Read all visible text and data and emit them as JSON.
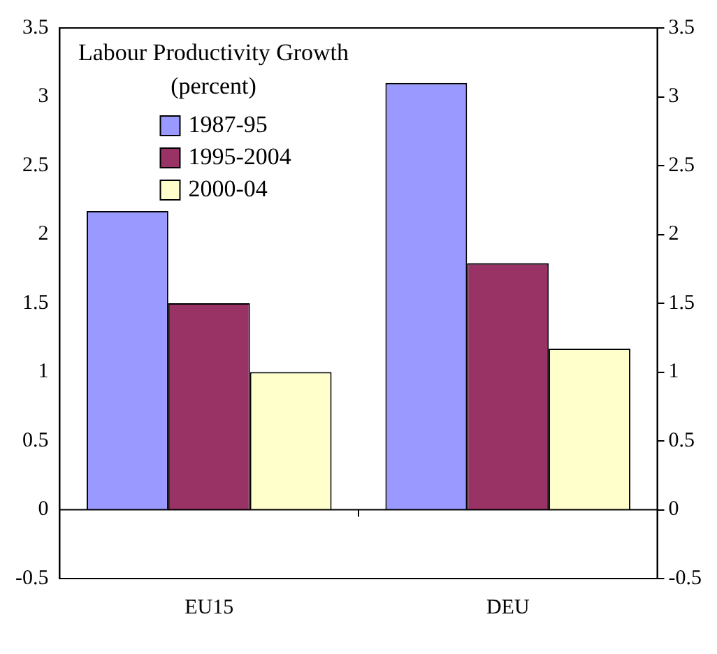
{
  "chart_data": {
    "type": "bar",
    "title": "Labour Productivity Growth",
    "subtitle": "(percent)",
    "categories": [
      "EU15",
      "DEU"
    ],
    "series": [
      {
        "name": "1987-95",
        "color": "#9999ff",
        "values": [
          2.17,
          3.1
        ]
      },
      {
        "name": "1995-2004",
        "color": "#993366",
        "values": [
          1.5,
          1.79
        ]
      },
      {
        "name": "2000-04",
        "color": "#ffffcc",
        "values": [
          1.0,
          1.17
        ]
      }
    ],
    "ylim": [
      -0.5,
      3.5
    ],
    "yticks": [
      -0.5,
      0,
      0.5,
      1,
      1.5,
      2,
      2.5,
      3,
      3.5
    ],
    "y2lim": [
      -0.5,
      3.5
    ],
    "y2ticks": [
      -0.5,
      0,
      0.5,
      1,
      1.5,
      2,
      2.5,
      3,
      3.5
    ],
    "ref_lines": [
      {
        "axis": "y",
        "value": 0
      }
    ],
    "grid": false,
    "legend": "top"
  }
}
